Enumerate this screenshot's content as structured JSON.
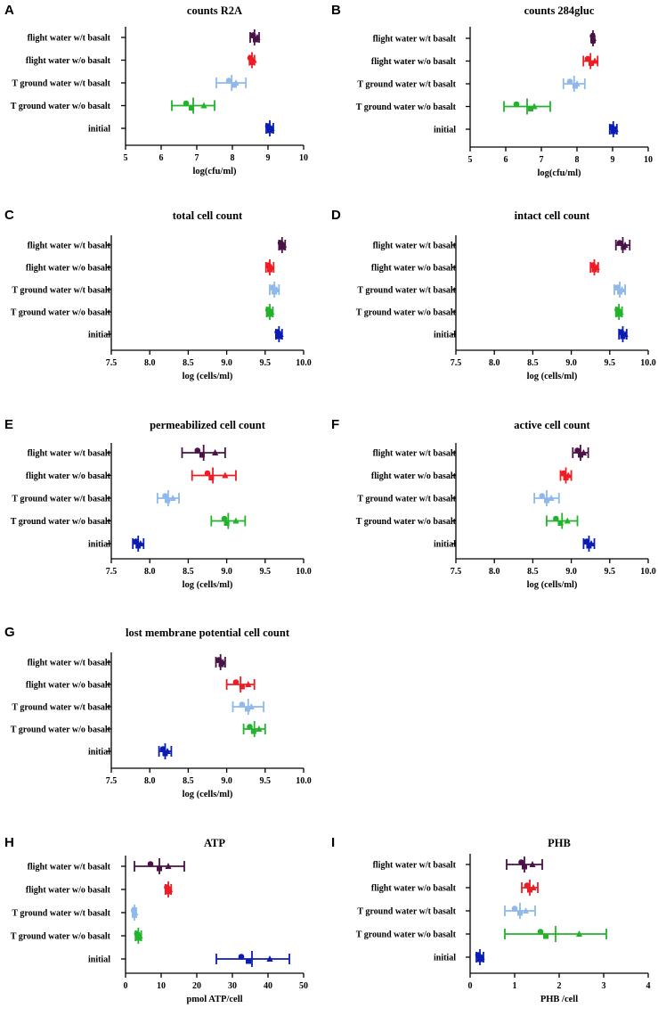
{
  "colors": {
    "flight water w/t basalt": "#4a1248",
    "flight water w/o basalt": "#ee1c24",
    "T ground water w/t basalt": "#8fb8ec",
    "T ground water w/o basalt": "#22b22c",
    "initial": "#0b1db0"
  },
  "chart_data": [
    {
      "panel": "A",
      "type": "scatter",
      "title": "counts R2A",
      "xlabel": "log(cfu/ml)",
      "xlim": [
        5,
        10
      ],
      "ticks": [
        "5",
        "6",
        "7",
        "8",
        "9",
        "10"
      ],
      "categories": [
        "flight water w/t basalt",
        "flight water w/o basalt",
        "T ground water w/t basalt",
        "T ground water w/o basalt",
        "initial"
      ],
      "series": [
        {
          "name": "flight water w/t basalt",
          "mean": 8.62,
          "err": [
            8.5,
            8.75
          ],
          "points": [
            8.58,
            8.65,
            8.7
          ]
        },
        {
          "name": "flight water w/o basalt",
          "mean": 8.55,
          "err": [
            8.48,
            8.62
          ],
          "points": [
            8.5,
            8.55,
            8.6
          ]
        },
        {
          "name": "T ground water w/t basalt",
          "mean": 7.98,
          "err": [
            7.55,
            8.38
          ],
          "points": [
            7.9,
            8.05,
            8.1
          ]
        },
        {
          "name": "T ground water w/o basalt",
          "mean": 6.9,
          "err": [
            6.3,
            7.5
          ],
          "points": [
            6.7,
            6.85,
            7.2
          ]
        },
        {
          "name": "initial",
          "mean": 9.05,
          "err": [
            8.95,
            9.15
          ],
          "points": [
            9.0,
            9.05,
            9.1
          ]
        }
      ]
    },
    {
      "panel": "B",
      "type": "scatter",
      "title": "counts 284gluc",
      "xlabel": "log(cfu/ml)",
      "xlim": [
        5,
        10
      ],
      "ticks": [
        "5",
        "6",
        "7",
        "8",
        "9",
        "10"
      ],
      "categories": [
        "flight water w/t basalt",
        "flight water w/o basalt",
        "T ground water w/t basalt",
        "T ground water w/o basalt",
        "initial"
      ],
      "series": [
        {
          "name": "flight water w/t basalt",
          "mean": 8.45,
          "err": [
            8.42,
            8.48
          ],
          "points": [
            8.44,
            8.45,
            8.46
          ]
        },
        {
          "name": "flight water w/o basalt",
          "mean": 8.38,
          "err": [
            8.18,
            8.58
          ],
          "points": [
            8.3,
            8.4,
            8.5
          ]
        },
        {
          "name": "T ground water w/t basalt",
          "mean": 7.92,
          "err": [
            7.62,
            8.22
          ],
          "points": [
            7.8,
            7.95,
            8.0
          ]
        },
        {
          "name": "T ground water w/o basalt",
          "mean": 6.6,
          "err": [
            5.95,
            7.25
          ],
          "points": [
            6.3,
            6.7,
            6.8
          ]
        },
        {
          "name": "initial",
          "mean": 9.02,
          "err": [
            8.92,
            9.12
          ],
          "points": [
            8.98,
            9.02,
            9.08
          ]
        }
      ]
    },
    {
      "panel": "C",
      "type": "scatter",
      "title": "total cell count",
      "xlabel": "log (cells/ml)",
      "xlim": [
        7.5,
        10
      ],
      "ticks": [
        "7.5",
        "8.0",
        "8.5",
        "9.0",
        "9.5",
        "10.0"
      ],
      "categories": [
        "flight water w/t basalt",
        "flight water w/o basalt",
        "T ground water w/t basalt",
        "T ground water w/o basalt",
        "initial"
      ],
      "series": [
        {
          "name": "flight water w/t basalt",
          "mean": 9.72,
          "err": [
            9.68,
            9.76
          ],
          "points": [
            9.7,
            9.72,
            9.74
          ]
        },
        {
          "name": "flight water w/o basalt",
          "mean": 9.56,
          "err": [
            9.51,
            9.61
          ],
          "points": [
            9.54,
            9.56,
            9.58
          ]
        },
        {
          "name": "T ground water w/t basalt",
          "mean": 9.62,
          "err": [
            9.56,
            9.68
          ],
          "points": [
            9.6,
            9.62,
            9.65
          ]
        },
        {
          "name": "T ground water w/o basalt",
          "mean": 9.56,
          "err": [
            9.52,
            9.6
          ],
          "points": [
            9.54,
            9.56,
            9.58
          ]
        },
        {
          "name": "initial",
          "mean": 9.68,
          "err": [
            9.64,
            9.72
          ],
          "points": [
            9.66,
            9.68,
            9.7
          ]
        }
      ]
    },
    {
      "panel": "D",
      "type": "scatter",
      "title": "intact cell count",
      "xlabel": "log (cells/ml)",
      "xlim": [
        7.5,
        10
      ],
      "ticks": [
        "7.5",
        "8.0",
        "8.5",
        "9.0",
        "9.5",
        "10.0"
      ],
      "categories": [
        "flight water w/t basalt",
        "flight water w/o basalt",
        "T ground water w/t basalt",
        "T ground water w/o basalt",
        "initial"
      ],
      "series": [
        {
          "name": "flight water w/t basalt",
          "mean": 9.67,
          "err": [
            9.58,
            9.76
          ],
          "points": [
            9.63,
            9.68,
            9.7
          ]
        },
        {
          "name": "flight water w/o basalt",
          "mean": 9.3,
          "err": [
            9.25,
            9.35
          ],
          "points": [
            9.28,
            9.3,
            9.33
          ]
        },
        {
          "name": "T ground water w/t basalt",
          "mean": 9.63,
          "err": [
            9.56,
            9.7
          ],
          "points": [
            9.6,
            9.63,
            9.66
          ]
        },
        {
          "name": "T ground water w/o basalt",
          "mean": 9.62,
          "err": [
            9.58,
            9.66
          ],
          "points": [
            9.6,
            9.62,
            9.64
          ]
        },
        {
          "name": "initial",
          "mean": 9.67,
          "err": [
            9.62,
            9.72
          ],
          "points": [
            9.65,
            9.67,
            9.7
          ]
        }
      ]
    },
    {
      "panel": "E",
      "type": "scatter",
      "title": "permeabilized cell count",
      "xlabel": "log (cells/ml)",
      "xlim": [
        7.5,
        10
      ],
      "ticks": [
        "7.5",
        "8.0",
        "8.5",
        "9.0",
        "9.5",
        "10.0"
      ],
      "categories": [
        "flight water w/t basalt",
        "flight water w/o basalt",
        "T ground water w/t basalt",
        "T ground water w/o basalt",
        "initial"
      ],
      "series": [
        {
          "name": "flight water w/t basalt",
          "mean": 8.7,
          "err": [
            8.42,
            8.98
          ],
          "points": [
            8.62,
            8.68,
            8.85
          ]
        },
        {
          "name": "flight water w/o basalt",
          "mean": 8.82,
          "err": [
            8.55,
            9.12
          ],
          "points": [
            8.75,
            8.8,
            8.98
          ]
        },
        {
          "name": "T ground water w/t basalt",
          "mean": 8.24,
          "err": [
            8.1,
            8.38
          ],
          "points": [
            8.2,
            8.23,
            8.3
          ]
        },
        {
          "name": "T ground water w/o basalt",
          "mean": 9.02,
          "err": [
            8.8,
            9.24
          ],
          "points": [
            8.97,
            9.0,
            9.12
          ]
        },
        {
          "name": "initial",
          "mean": 7.85,
          "err": [
            7.78,
            7.92
          ],
          "points": [
            7.82,
            7.85,
            7.88
          ]
        }
      ]
    },
    {
      "panel": "F",
      "type": "scatter",
      "title": "active cell count",
      "xlabel": "log (cells/ml)",
      "xlim": [
        7.5,
        10
      ],
      "ticks": [
        "7.5",
        "8.0",
        "8.5",
        "9.0",
        "9.5",
        "10.0"
      ],
      "categories": [
        "flight water w/t basalt",
        "flight water w/o basalt",
        "T ground water w/t basalt",
        "T ground water w/o basalt",
        "initial"
      ],
      "series": [
        {
          "name": "flight water w/t basalt",
          "mean": 9.12,
          "err": [
            9.02,
            9.22
          ],
          "points": [
            9.08,
            9.12,
            9.16
          ]
        },
        {
          "name": "flight water w/o basalt",
          "mean": 8.93,
          "err": [
            8.86,
            9.0
          ],
          "points": [
            8.9,
            8.93,
            8.96
          ]
        },
        {
          "name": "T ground water w/t basalt",
          "mean": 8.68,
          "err": [
            8.52,
            8.84
          ],
          "points": [
            8.62,
            8.68,
            8.74
          ]
        },
        {
          "name": "T ground water w/o basalt",
          "mean": 8.88,
          "err": [
            8.68,
            9.08
          ],
          "points": [
            8.8,
            8.86,
            8.95
          ]
        },
        {
          "name": "initial",
          "mean": 9.23,
          "err": [
            9.16,
            9.3
          ],
          "points": [
            9.2,
            9.23,
            9.26
          ]
        }
      ]
    },
    {
      "panel": "G",
      "type": "scatter",
      "title": "lost membrane potential cell count",
      "xlabel": "log (cells/ml)",
      "xlim": [
        7.5,
        10
      ],
      "ticks": [
        "7.5",
        "8.0",
        "8.5",
        "9.0",
        "9.5",
        "10.0"
      ],
      "categories": [
        "flight water w/t basalt",
        "flight water w/o basalt",
        "T ground water w/t basalt",
        "T ground water w/o basalt",
        "initial"
      ],
      "series": [
        {
          "name": "flight water w/t basalt",
          "mean": 8.92,
          "err": [
            8.86,
            8.98
          ],
          "points": [
            8.9,
            8.93,
            8.95
          ]
        },
        {
          "name": "flight water w/o basalt",
          "mean": 9.18,
          "err": [
            9.0,
            9.36
          ],
          "points": [
            9.12,
            9.2,
            9.28
          ]
        },
        {
          "name": "T ground water w/t basalt",
          "mean": 9.28,
          "err": [
            9.08,
            9.48
          ],
          "points": [
            9.2,
            9.27,
            9.32
          ]
        },
        {
          "name": "T ground water w/o basalt",
          "mean": 9.36,
          "err": [
            9.22,
            9.5
          ],
          "points": [
            9.3,
            9.35,
            9.42
          ]
        },
        {
          "name": "initial",
          "mean": 8.2,
          "err": [
            8.12,
            8.28
          ],
          "points": [
            8.17,
            8.2,
            8.23
          ]
        }
      ]
    },
    {
      "panel": "H",
      "type": "scatter",
      "title": "ATP",
      "xlabel": "pmol ATP/cell",
      "xlim": [
        0,
        50
      ],
      "ticks": [
        "0",
        "10",
        "20",
        "30",
        "40",
        "50"
      ],
      "categories": [
        "flight water w/t basalt",
        "flight water w/o basalt",
        "T ground water w/t basalt",
        "T ground water w/o basalt",
        "initial"
      ],
      "series": [
        {
          "name": "flight water w/t basalt",
          "mean": 9.5,
          "err": [
            2.5,
            16.5
          ],
          "points": [
            7.0,
            9.5,
            12.0
          ]
        },
        {
          "name": "flight water w/o basalt",
          "mean": 12.0,
          "err": [
            11.2,
            12.8
          ],
          "points": [
            11.6,
            12.0,
            12.4
          ]
        },
        {
          "name": "T ground water w/t basalt",
          "mean": 2.5,
          "err": [
            2.0,
            3.0
          ],
          "points": [
            2.3,
            2.5,
            2.7
          ]
        },
        {
          "name": "T ground water w/o basalt",
          "mean": 3.6,
          "err": [
            2.8,
            4.4
          ],
          "points": [
            3.2,
            3.6,
            4.0
          ]
        },
        {
          "name": "initial",
          "mean": 35.5,
          "err": [
            25.5,
            46.0
          ],
          "points": [
            32.5,
            34.5,
            40.5
          ]
        }
      ]
    },
    {
      "panel": "I",
      "type": "scatter",
      "title": "PHB",
      "xlabel": "PHB /cell",
      "xlim": [
        0,
        4
      ],
      "ticks": [
        "0",
        "1",
        "2",
        "3",
        "4"
      ],
      "categories": [
        "flight water w/t basalt",
        "flight water w/o basalt",
        "T ground water w/t basalt",
        "T ground water w/o basalt",
        "initial"
      ],
      "series": [
        {
          "name": "flight water w/t basalt",
          "mean": 1.22,
          "err": [
            0.82,
            1.62
          ],
          "points": [
            1.15,
            1.22,
            1.4
          ]
        },
        {
          "name": "flight water w/o basalt",
          "mean": 1.34,
          "err": [
            1.16,
            1.52
          ],
          "points": [
            1.28,
            1.34,
            1.42
          ]
        },
        {
          "name": "T ground water w/t basalt",
          "mean": 1.12,
          "err": [
            0.78,
            1.46
          ],
          "points": [
            1.0,
            1.12,
            1.25
          ]
        },
        {
          "name": "T ground water w/o basalt",
          "mean": 1.92,
          "err": [
            0.78,
            3.06
          ],
          "points": [
            1.58,
            1.7,
            2.45
          ]
        },
        {
          "name": "initial",
          "mean": 0.22,
          "err": [
            0.14,
            0.3
          ],
          "points": [
            0.18,
            0.22,
            0.26
          ]
        }
      ]
    }
  ]
}
